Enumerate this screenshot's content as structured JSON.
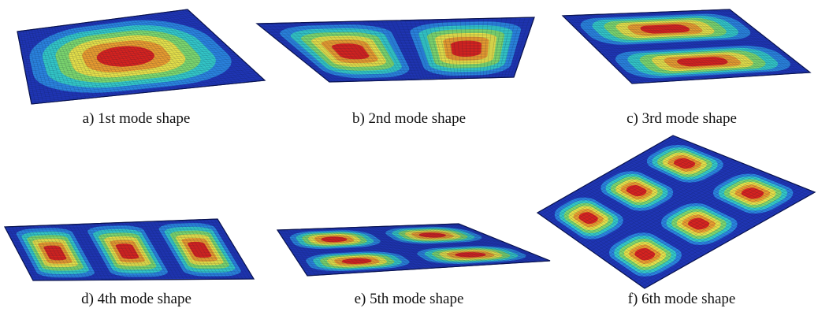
{
  "figure": {
    "panels": [
      {
        "id": "a",
        "caption": "a) 1st mode shape",
        "mode": 1,
        "grid": [
          1,
          1
        ]
      },
      {
        "id": "b",
        "caption": "b) 2nd mode shape",
        "mode": 2,
        "grid": [
          2,
          1
        ]
      },
      {
        "id": "c",
        "caption": "c) 3rd mode shape",
        "mode": 3,
        "grid": [
          1,
          2
        ]
      },
      {
        "id": "d",
        "caption": "d) 4th mode shape",
        "mode": 4,
        "grid": [
          3,
          1
        ]
      },
      {
        "id": "e",
        "caption": "e) 5th mode shape",
        "mode": 5,
        "grid": [
          2,
          2
        ]
      },
      {
        "id": "f",
        "caption": "f) 6th mode shape",
        "mode": 6,
        "grid": [
          3,
          2
        ]
      }
    ],
    "colormap": [
      "#1f35b5",
      "#2a86e0",
      "#34c9c7",
      "#7fd86a",
      "#e8e048",
      "#e89a2e",
      "#d61f1f"
    ],
    "mesh_color": "#0b1a3a"
  }
}
